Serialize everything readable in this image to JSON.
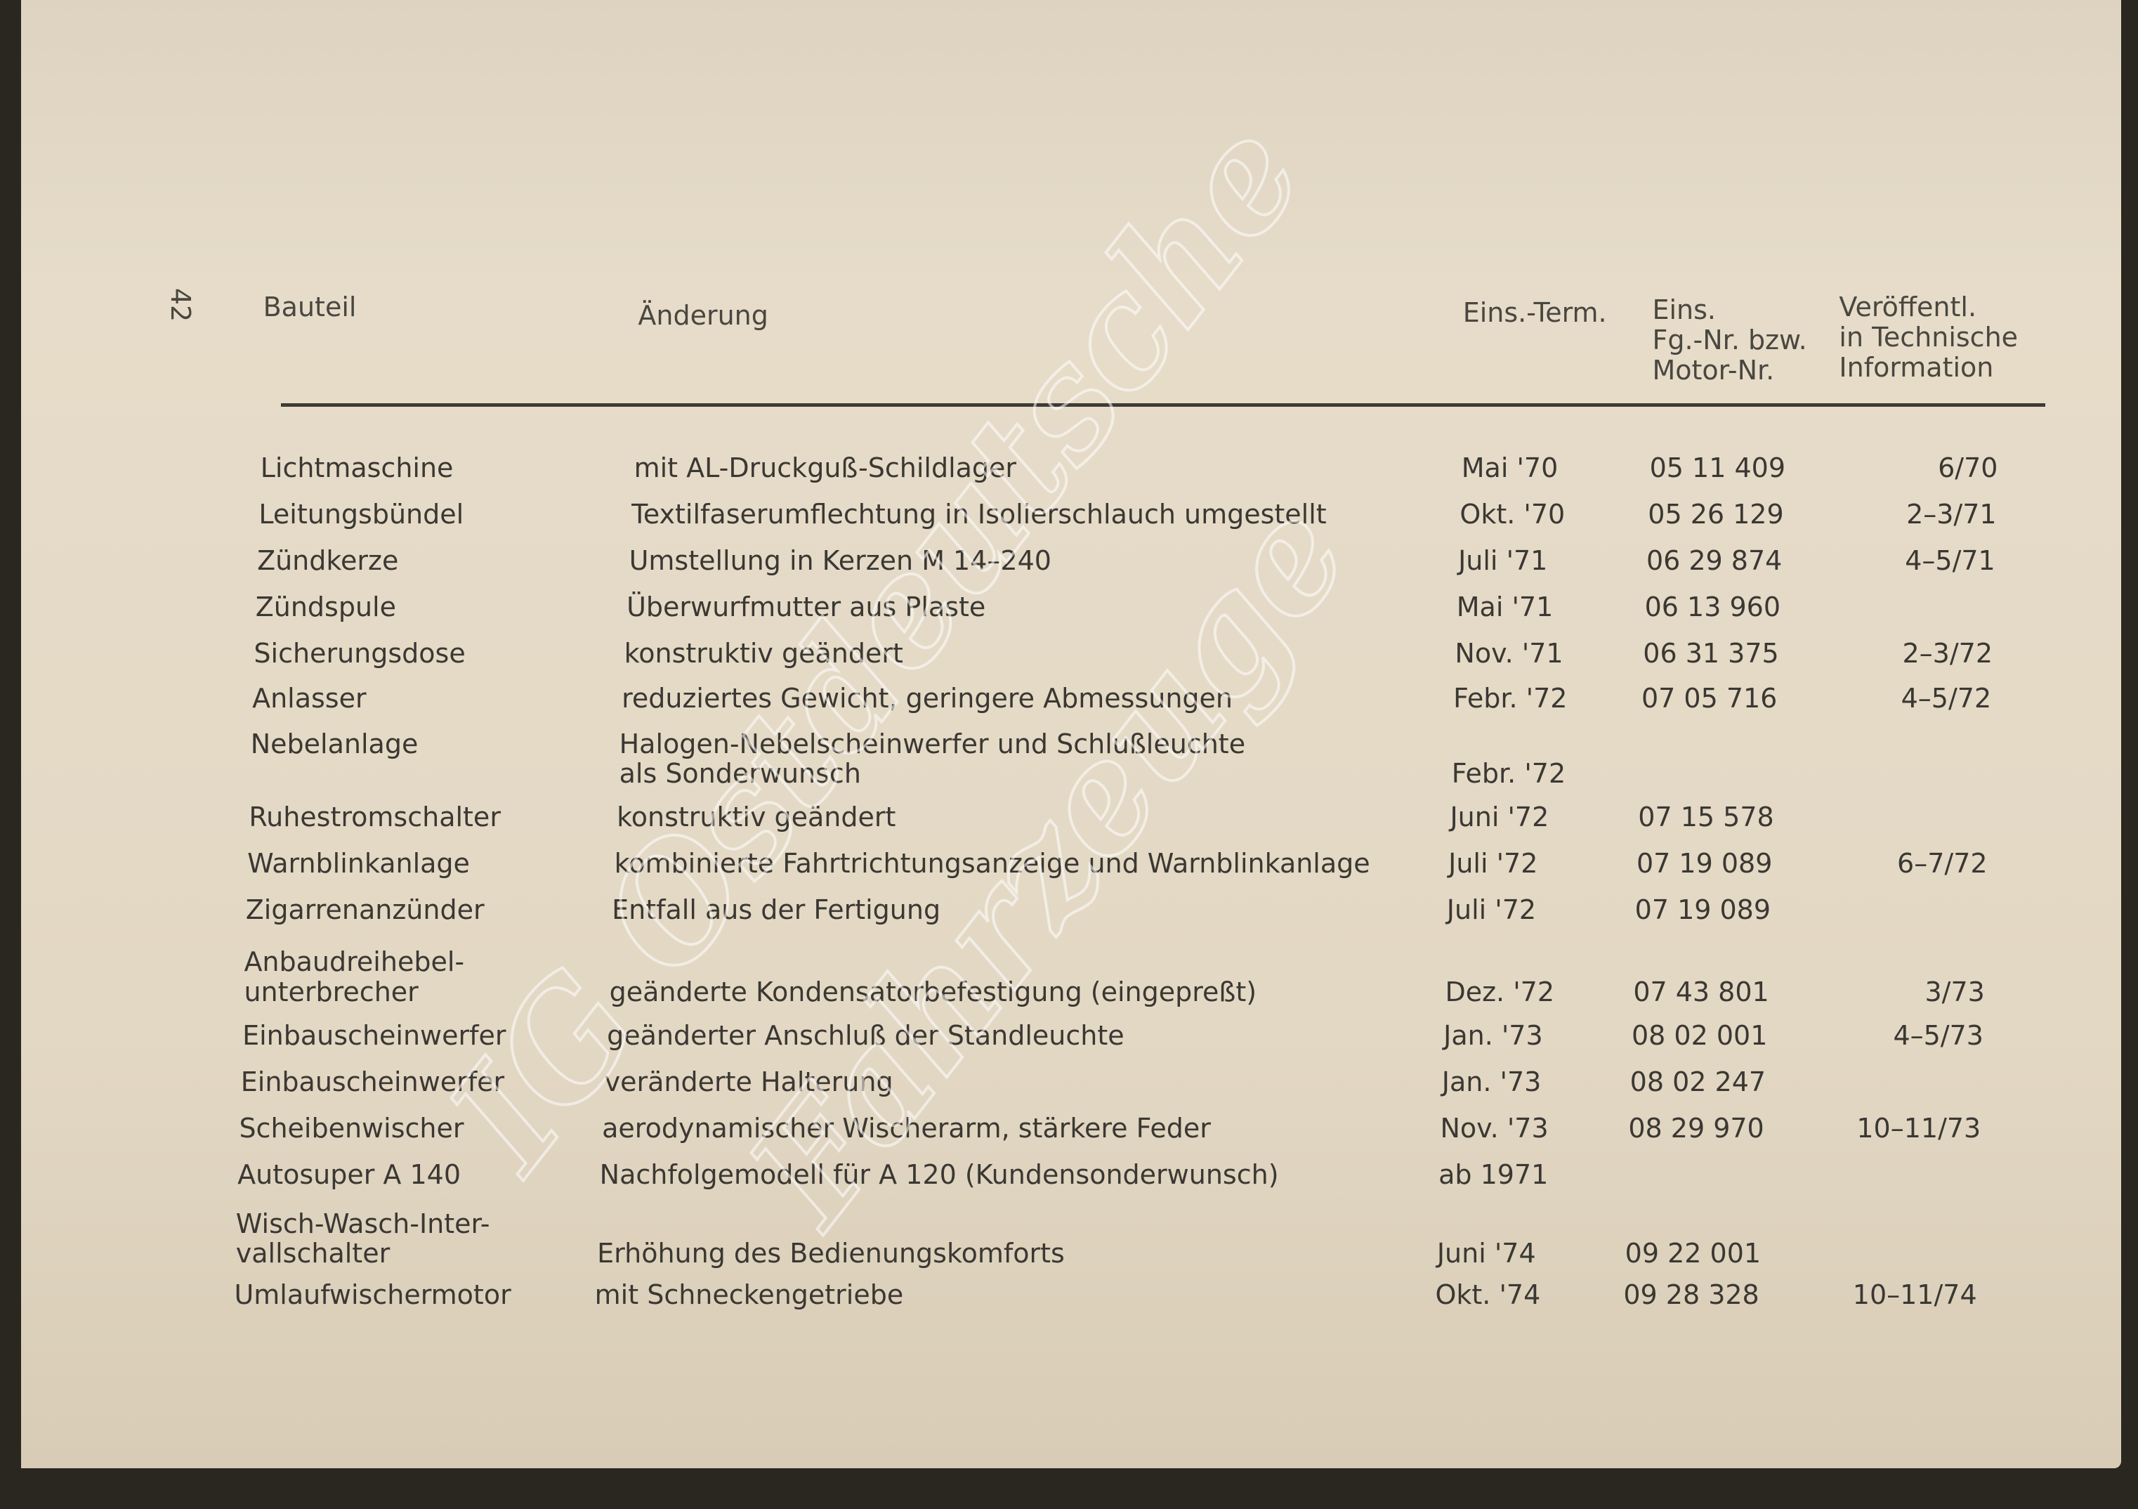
{
  "page_number": "42",
  "header": {
    "bauteil": "Bauteil",
    "aenderung": "Änderung",
    "termin": "Eins.-Term.",
    "nummer": [
      "Eins.",
      "Fg.-Nr. bzw.",
      "Motor-Nr."
    ],
    "info": [
      "Veröffentl.",
      "in Technische",
      "Information"
    ]
  },
  "rows": [
    {
      "bauteil": "Lichtmaschine",
      "aenderung": "mit AL-Druckguß-Schildlager",
      "termin": "Mai '70",
      "nummer": "05 11 409",
      "info": "6/70"
    },
    {
      "bauteil": "Leitungsbündel",
      "aenderung": "Textilfaserumflechtung in Isolierschlauch umgestellt",
      "termin": "Okt. '70",
      "nummer": "05 26 129",
      "info": "2–3/71"
    },
    {
      "bauteil": "Zündkerze",
      "aenderung": "Umstellung in Kerzen M 14–240",
      "termin": "Juli '71",
      "nummer": "06 29 874",
      "info": "4–5/71"
    },
    {
      "bauteil": "Zündspule",
      "aenderung": "Überwurfmutter aus Plaste",
      "termin": "Mai '71",
      "nummer": "06 13 960",
      "info": null
    },
    {
      "bauteil": "Sicherungsdose",
      "aenderung": "konstruktiv geändert",
      "termin": "Nov. '71",
      "nummer": "06 31 375",
      "info": "2–3/72"
    },
    {
      "bauteil": "Anlasser",
      "aenderung": "reduziertes Gewicht, geringere Abmessungen",
      "termin": "Febr. '72",
      "nummer": "07 05 716",
      "info": "4–5/72"
    },
    {
      "bauteil": "Nebelanlage",
      "aenderung": [
        "Halogen-Nebelscheinwerfer und Schlußleuchte",
        "als Sonderwunsch"
      ],
      "termin": "Febr. '72",
      "nummer": null,
      "info": null
    },
    {
      "bauteil": "Ruhestromschalter",
      "aenderung": "konstruktiv geändert",
      "termin": "Juni '72",
      "nummer": "07 15 578",
      "info": null
    },
    {
      "bauteil": "Warnblinkanlage",
      "aenderung": "kombinierte Fahrtrichtungsanzeige und Warnblinkanlage",
      "termin": "Juli '72",
      "nummer": "07 19 089",
      "info": "6–7/72"
    },
    {
      "bauteil": "Zigarrenanzünder",
      "aenderung": "Entfall aus der Fertigung",
      "termin": "Juli '72",
      "nummer": "07 19 089",
      "info": null
    },
    {
      "bauteil": [
        "Anbaudreihebel-",
        "unterbrecher"
      ],
      "aenderung": "geänderte Kondensatorbefestigung (eingepreßt)",
      "termin": "Dez. '72",
      "nummer": "07 43 801",
      "info": "3/73"
    },
    {
      "bauteil": "Einbauscheinwerfer",
      "aenderung": "geänderter Anschluß der Standleuchte",
      "termin": "Jan. '73",
      "nummer": "08 02 001",
      "info": "4–5/73"
    },
    {
      "bauteil": "Einbauscheinwerfer",
      "aenderung": "veränderte Halterung",
      "termin": "Jan. '73",
      "nummer": "08 02 247",
      "info": null
    },
    {
      "bauteil": "Scheibenwischer",
      "aenderung": "aerodynamischer Wischerarm, stärkere Feder",
      "termin": "Nov. '73",
      "nummer": "08 29 970",
      "info": "10–11/73"
    },
    {
      "bauteil": "Autosuper A 140",
      "aenderung": "Nachfolgemodell für A 120 (Kundensonderwunsch)",
      "termin": "ab 1971",
      "nummer": null,
      "info": null
    },
    {
      "bauteil": [
        "Wisch-Wasch-Inter-",
        "vallschalter"
      ],
      "aenderung": "Erhöhung des Bedienungskomforts",
      "termin": "Juni '74",
      "nummer": "09 22 001",
      "info": null
    },
    {
      "bauteil": "Umlaufwischermotor",
      "aenderung": "mit Schneckengetriebe",
      "termin": "Okt. '74",
      "nummer": "09 28 328",
      "info": "10–11/74"
    }
  ],
  "watermark": [
    "IG Ostdeutsche",
    "Fahrzeuge"
  ]
}
